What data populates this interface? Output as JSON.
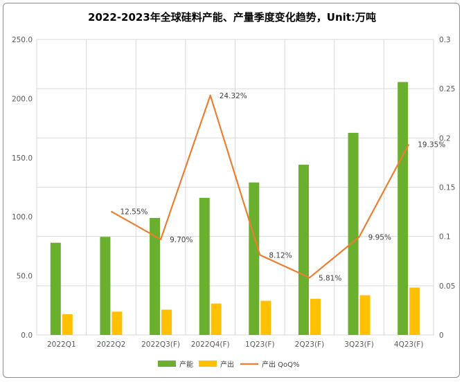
{
  "chart_data": {
    "type": "bar",
    "title": "2022-2023年全球硅料产能、产量季度变化趋势，Unit:万吨",
    "categories": [
      "2022Q1",
      "2022Q2",
      "2022Q3(F)",
      "2022Q4(F)",
      "1Q23(F)",
      "2Q23(F)",
      "3Q23(F)",
      "4Q23(F)"
    ],
    "series": [
      {
        "name": "产能",
        "type": "bar",
        "axis": "left",
        "color": "#6aaf2e",
        "values": [
          78,
          83,
          99,
          116,
          129,
          144,
          171,
          214
        ]
      },
      {
        "name": "产出",
        "type": "bar",
        "axis": "left",
        "color": "#ffc000",
        "values": [
          17.5,
          19.7,
          21.4,
          26.6,
          28.9,
          30.6,
          33.6,
          40.1
        ]
      },
      {
        "name": "产出 QoQ%",
        "type": "line",
        "axis": "right",
        "color": "#ed7d31",
        "values": [
          null,
          0.1255,
          0.097,
          0.2432,
          0.0812,
          0.0581,
          0.0995,
          0.1935
        ],
        "labels": [
          "",
          "12.55%",
          "9.70%",
          "24.32%",
          "8.12%",
          "5.81%",
          "9.95%",
          "19.35%"
        ]
      }
    ],
    "y_left": {
      "ylim": [
        0,
        250
      ],
      "ticks": [
        "0.0",
        "50.0",
        "100.0",
        "150.0",
        "200.0",
        "250.0"
      ],
      "values": [
        0,
        50,
        100,
        150,
        200,
        250
      ]
    },
    "y_right": {
      "ylim": [
        0,
        0.3
      ],
      "ticks": [
        "0",
        "0.05",
        "0.1",
        "0.15",
        "0.2",
        "0.25",
        "0.3"
      ],
      "values": [
        0,
        0.05,
        0.1,
        0.15,
        0.2,
        0.25,
        0.3
      ]
    },
    "grid": true,
    "legend": "bottom"
  }
}
